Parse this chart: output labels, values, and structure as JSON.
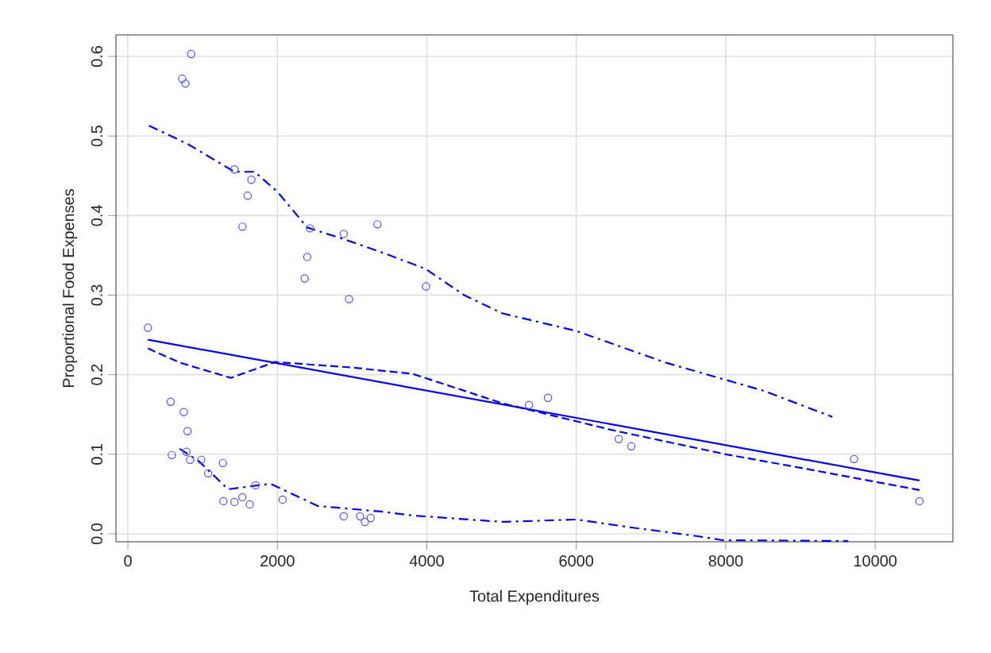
{
  "chart_data": {
    "type": "scatter",
    "xlabel": "Total Expenditures",
    "ylabel": "Proportional Food Expenses",
    "xlim": [
      -160,
      11040
    ],
    "ylim": [
      -0.01,
      0.627
    ],
    "xticks": [
      0,
      2000,
      4000,
      6000,
      8000,
      10000
    ],
    "yticks": [
      {
        "value": 0,
        "label": "0.0"
      },
      0.1,
      0.2,
      0.3,
      0.4,
      0.5,
      0.6
    ],
    "grid": true,
    "series": [
      {
        "marker": "circle",
        "color": "#5050e8",
        "x": [
          847,
          727,
          770,
          1426,
          1653,
          1603,
          1533,
          2436,
          2888,
          3340,
          2401,
          2366,
          2959,
          3990,
          5367,
          5621,
          6568,
          6737,
          9717,
          10593,
          268,
          572,
          748,
          798,
          587,
          784,
          833,
          981,
          1271,
          1074,
          1709,
          1278,
          1426,
          1532,
          1631,
          2070,
          2888,
          3107,
          3171,
          3249
        ],
        "values": [
          0.603,
          0.572,
          0.566,
          0.458,
          0.445,
          0.425,
          0.386,
          0.384,
          0.377,
          0.389,
          0.348,
          0.321,
          0.295,
          0.311,
          0.162,
          0.171,
          0.119,
          0.11,
          0.094,
          0.041,
          0.259,
          0.166,
          0.153,
          0.129,
          0.099,
          0.103,
          0.093,
          0.093,
          0.089,
          0.076,
          0.061,
          0.041,
          0.04,
          0.046,
          0.037,
          0.043,
          0.022,
          0.022,
          0.015,
          0.02
        ]
      },
      {
        "type": "line",
        "marker": "none",
        "line_style": "solid",
        "color": "#0000ee",
        "x": [
          268,
          10593
        ],
        "values": [
          0.244,
          0.067
        ]
      },
      {
        "type": "line",
        "marker": "none",
        "line_style": "dashed",
        "color": "#0000ee",
        "x": [
          268,
          700,
          1377,
          1970,
          3000,
          3813,
          5014,
          6500,
          8000,
          9000,
          10593
        ],
        "values": [
          0.233,
          0.215,
          0.196,
          0.216,
          0.209,
          0.201,
          0.164,
          0.13,
          0.1,
          0.083,
          0.055
        ]
      },
      {
        "type": "line",
        "marker": "none",
        "line_style": "dashdot",
        "color": "#0000ee",
        "x": [
          282,
          800,
          1426,
          1695,
          2000,
          2400,
          2900,
          3390,
          3983,
          4500,
          5014,
          6000,
          7203,
          8500,
          9428
        ],
        "values": [
          0.513,
          0.49,
          0.455,
          0.455,
          0.43,
          0.385,
          0.37,
          0.354,
          0.333,
          0.3,
          0.277,
          0.255,
          0.215,
          0.18,
          0.147
        ]
      },
      {
        "type": "line",
        "marker": "none",
        "line_style": "dashdot",
        "color": "#0000ee",
        "x": [
          692,
          953,
          1342,
          1907,
          2542,
          3390,
          3813,
          5014,
          6000,
          6737,
          7627,
          7958,
          9640
        ],
        "values": [
          0.107,
          0.091,
          0.056,
          0.063,
          0.035,
          0.028,
          0.023,
          0.015,
          0.018,
          0.008,
          -0.003,
          -0.008,
          -0.009
        ]
      }
    ]
  }
}
